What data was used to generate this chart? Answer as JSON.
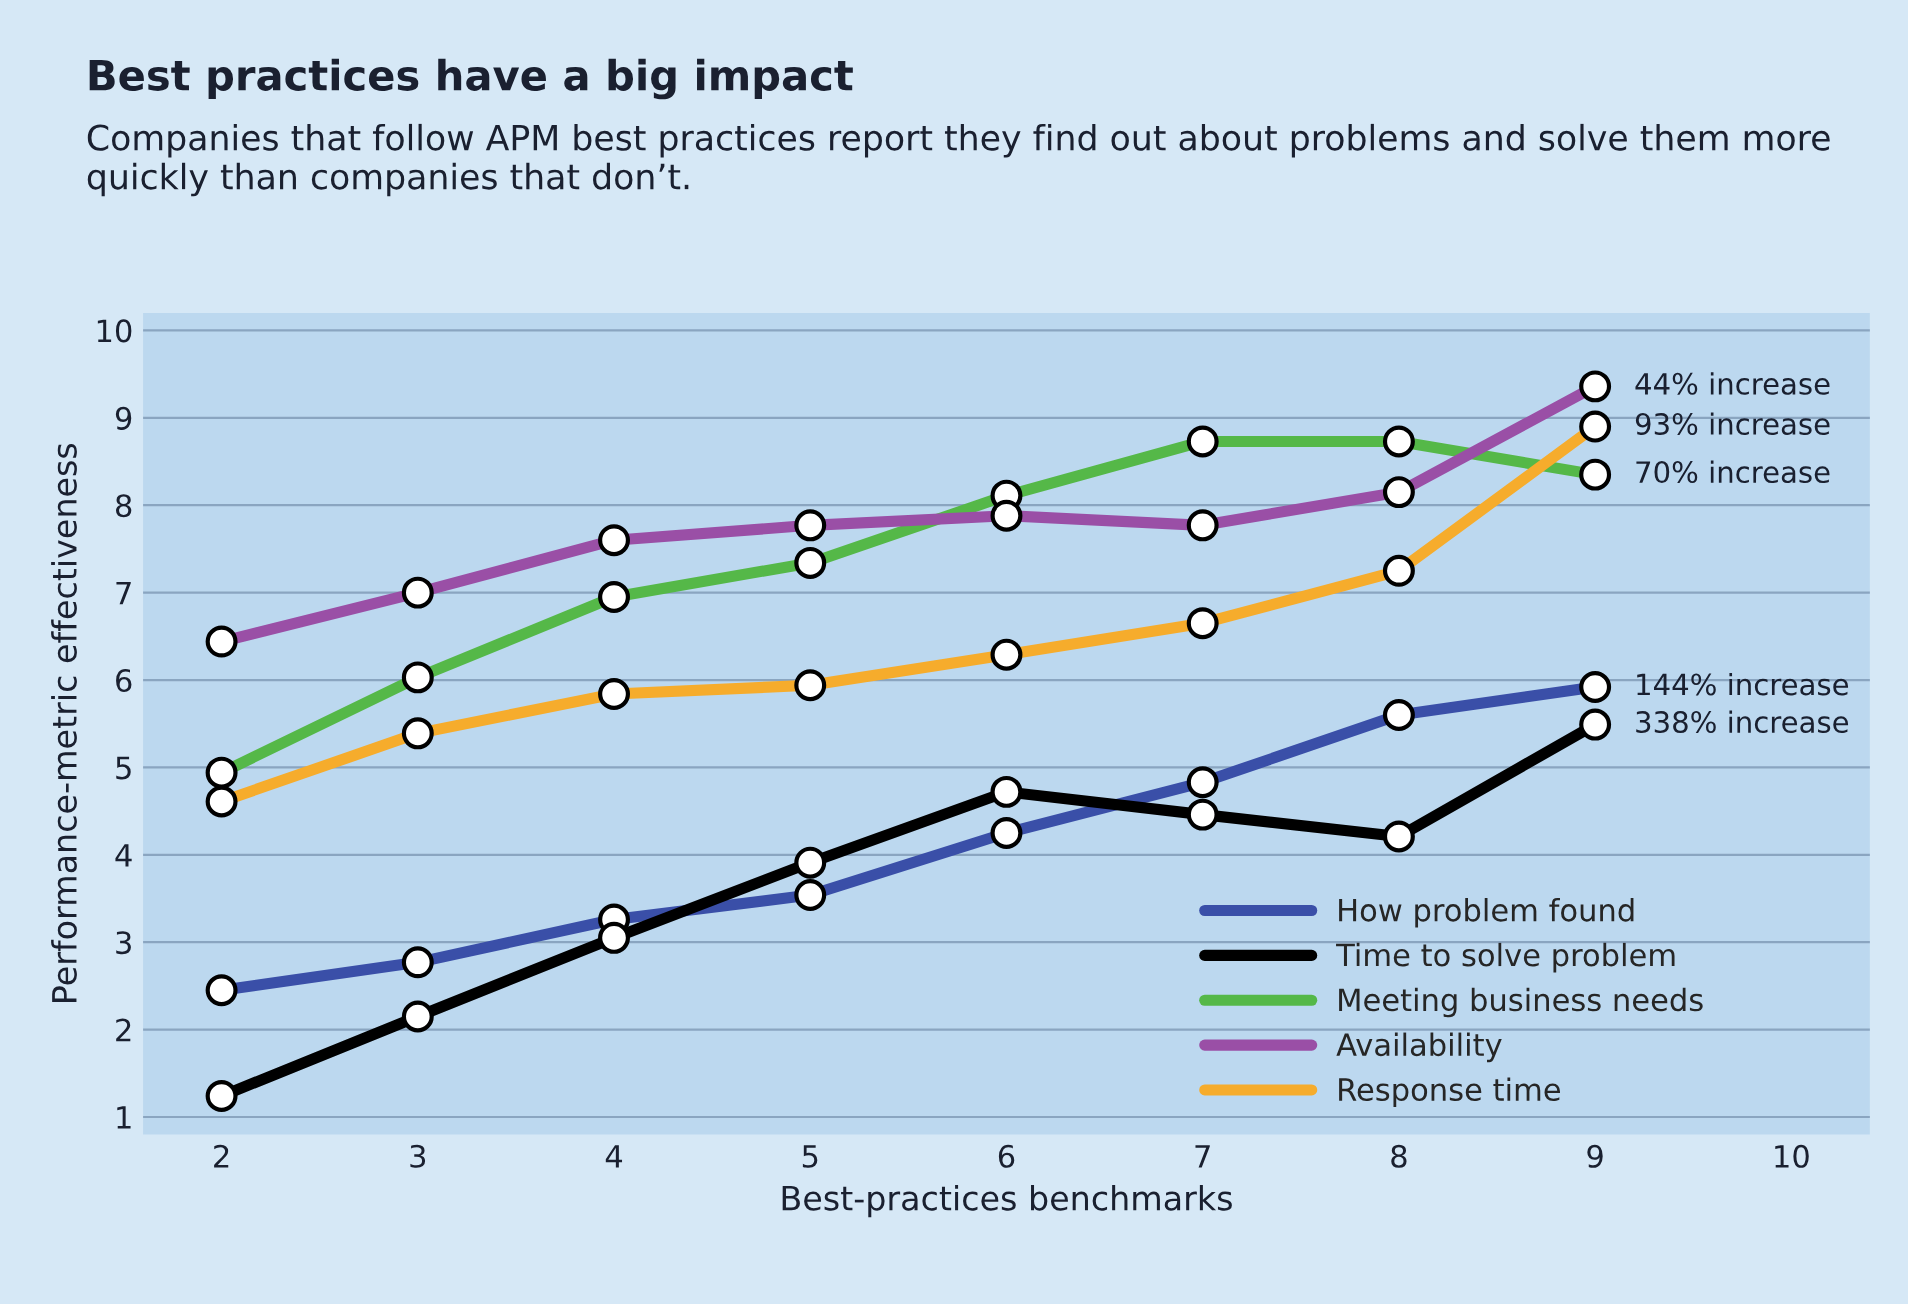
{
  "chart_data": {
    "type": "line",
    "title": "Best practices have a big impact",
    "subtitle": "Companies that follow APM best practices report they find out about problems and solve them more quickly than companies that don’t.",
    "xlabel": "Best-practices benchmarks",
    "ylabel": "Performance-metric effectiveness",
    "x": [
      2,
      3,
      4,
      5,
      6,
      7,
      8,
      9
    ],
    "series": [
      {
        "name": "How problem found",
        "color": "#3a4fa8",
        "values": [
          2.45,
          2.77,
          3.26,
          3.54,
          4.25,
          4.83,
          5.6,
          5.92
        ]
      },
      {
        "name": "Time to solve problem",
        "color": "#000000",
        "values": [
          1.24,
          2.15,
          3.05,
          3.91,
          4.72,
          4.46,
          4.21,
          5.49
        ]
      },
      {
        "name": "Meeting business needs",
        "color": "#55b848",
        "values": [
          4.94,
          6.03,
          6.95,
          7.34,
          8.11,
          8.73,
          8.73,
          8.35
        ]
      },
      {
        "name": "Availability",
        "color": "#9a4fa6",
        "values": [
          6.44,
          7.0,
          7.6,
          7.77,
          7.88,
          7.77,
          8.15,
          9.36
        ]
      },
      {
        "name": "Response time",
        "color": "#f6ac2c",
        "values": [
          4.61,
          5.39,
          5.84,
          5.94,
          6.29,
          6.65,
          7.25,
          8.9
        ]
      }
    ],
    "annotations": [
      "44% increase",
      "93% increase",
      "70% increase",
      "144% increase",
      "338% increase"
    ],
    "xlim": [
      1.6,
      10.4
    ],
    "xticks": [
      2,
      3,
      4,
      5,
      6,
      7,
      8,
      9,
      10
    ],
    "ylim": [
      0.8,
      10.2
    ],
    "yticks": [
      1,
      2,
      3,
      4,
      5,
      6,
      7,
      8,
      9,
      10
    ],
    "grid": "y",
    "legend": "bottom right",
    "marker": "circle",
    "line_style": "solid"
  }
}
